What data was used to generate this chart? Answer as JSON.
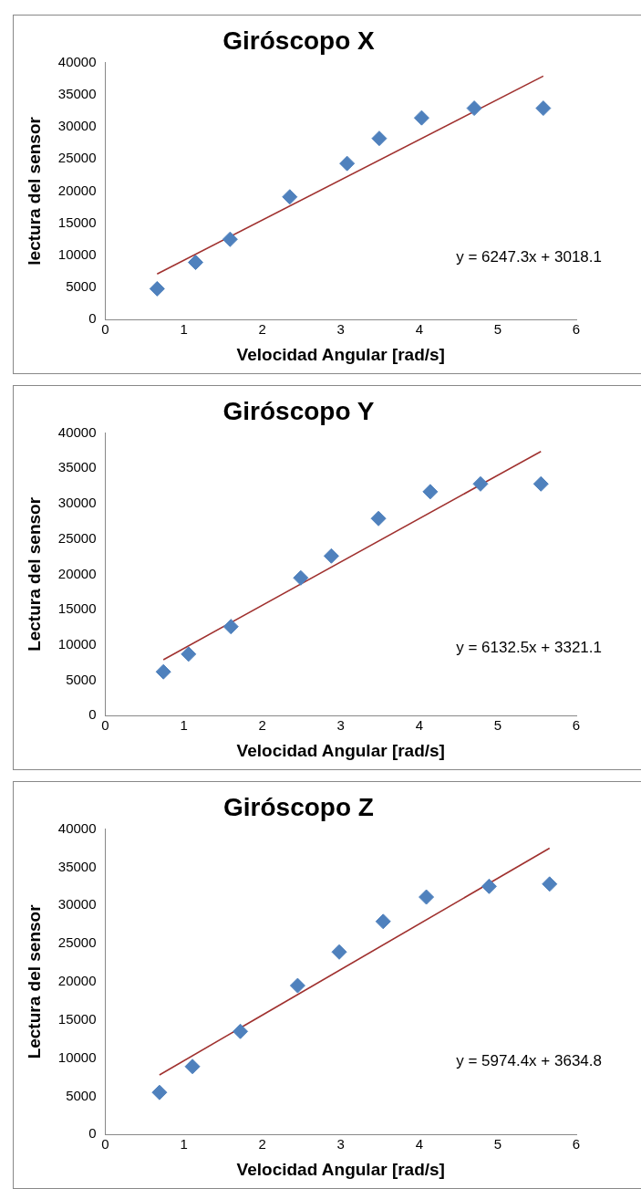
{
  "chart_data": [
    {
      "type": "scatter",
      "title": "Giróscopo X",
      "xlabel": "Velocidad Angular [rad/s]",
      "ylabel": "lectura del sensor",
      "xlim": [
        0,
        6
      ],
      "xticks": [
        0,
        1,
        2,
        3,
        4,
        5,
        6
      ],
      "ylim": [
        0,
        40000
      ],
      "yticks": [
        0,
        5000,
        10000,
        15000,
        20000,
        25000,
        30000,
        35000,
        40000
      ],
      "grid": false,
      "legend": false,
      "annotations": [
        "y = 6247.3x + 3018.1"
      ],
      "series": [
        {
          "color": "#4f81bd",
          "marker": "diamond",
          "x": [
            0.66,
            1.15,
            1.59,
            2.35,
            3.08,
            3.49,
            4.03,
            4.7,
            5.58
          ],
          "values": [
            4800,
            8900,
            12500,
            19100,
            24300,
            28200,
            31400,
            32900,
            32900
          ]
        },
        {
          "type": "line",
          "marker": "none",
          "color": "#a0312f",
          "x": [
            0.66,
            5.58
          ],
          "values": [
            7100,
            37900
          ]
        }
      ]
    },
    {
      "type": "scatter",
      "title": "Giróscopo Y",
      "xlabel": "Velocidad Angular [rad/s]",
      "ylabel": "Lectura del sensor",
      "xlim": [
        0,
        6
      ],
      "xticks": [
        0,
        1,
        2,
        3,
        4,
        5,
        6
      ],
      "ylim": [
        0,
        40000
      ],
      "yticks": [
        0,
        5000,
        10000,
        15000,
        20000,
        25000,
        30000,
        35000,
        40000
      ],
      "grid": false,
      "legend": false,
      "annotations": [
        "y = 6132.5x + 3321.1"
      ],
      "series": [
        {
          "color": "#4f81bd",
          "marker": "diamond",
          "x": [
            0.74,
            1.06,
            1.6,
            2.49,
            2.88,
            3.48,
            4.14,
            4.78,
            5.55
          ],
          "values": [
            6200,
            8700,
            12600,
            19500,
            22600,
            27900,
            31700,
            32800,
            32800
          ]
        },
        {
          "type": "line",
          "marker": "none",
          "color": "#a0312f",
          "x": [
            0.74,
            5.55
          ],
          "values": [
            7900,
            37400
          ]
        }
      ]
    },
    {
      "type": "scatter",
      "title": "Giróscopo Z",
      "xlabel": "Velocidad Angular [rad/s]",
      "ylabel": "Lectura del sensor",
      "xlim": [
        0,
        6
      ],
      "xticks": [
        0,
        1,
        2,
        3,
        4,
        5,
        6
      ],
      "ylim": [
        0,
        40000
      ],
      "yticks": [
        0,
        5000,
        10000,
        15000,
        20000,
        25000,
        30000,
        35000,
        40000
      ],
      "grid": false,
      "legend": false,
      "annotations": [
        "y = 5974.4x + 3634.8"
      ],
      "series": [
        {
          "color": "#4f81bd",
          "marker": "diamond",
          "x": [
            0.69,
            1.11,
            1.72,
            2.45,
            2.98,
            3.54,
            4.09,
            4.89,
            5.66
          ],
          "values": [
            5500,
            8900,
            13500,
            19500,
            23900,
            27900,
            31100,
            32500,
            32800
          ]
        },
        {
          "type": "line",
          "marker": "none",
          "color": "#a0312f",
          "x": [
            0.69,
            5.66
          ],
          "values": [
            7800,
            37500
          ]
        }
      ]
    }
  ]
}
